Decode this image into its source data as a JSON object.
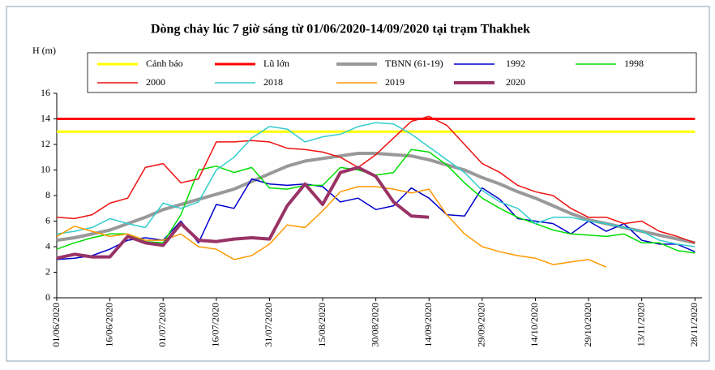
{
  "chart_data": {
    "type": "line",
    "title": "Dòng chảy lúc 7 giờ sáng từ 01/06/2020-14/09/2020 tại trạm Thakhek",
    "y_label": "H (m)",
    "x": [
      "01/06/2020",
      "06/06/2020",
      "11/06/2020",
      "16/06/2020",
      "21/06/2020",
      "26/06/2020",
      "01/07/2020",
      "06/07/2020",
      "11/07/2020",
      "16/07/2020",
      "21/07/2020",
      "26/07/2020",
      "31/07/2020",
      "05/08/2020",
      "10/08/2020",
      "15/08/2020",
      "20/08/2020",
      "25/08/2020",
      "30/08/2020",
      "04/09/2020",
      "09/09/2020",
      "14/09/2020",
      "19/09/2020",
      "24/09/2020",
      "29/09/2020",
      "04/10/2020",
      "09/10/2020",
      "14/10/2020",
      "19/10/2020",
      "24/10/2020",
      "29/10/2020",
      "03/11/2020",
      "08/11/2020",
      "13/11/2020",
      "18/11/2020",
      "23/11/2020",
      "28/11/2020"
    ],
    "xlim": [
      "01/06/2020",
      "30/11/2020"
    ],
    "xticks": [
      "01/06/2020",
      "16/06/2020",
      "01/07/2020",
      "16/07/2020",
      "31/07/2020",
      "15/08/2020",
      "30/08/2020",
      "14/09/2020",
      "29/09/2020",
      "14/10/2020",
      "29/10/2020",
      "13/11/2020",
      "28/11/2020"
    ],
    "ylim": [
      0,
      16
    ],
    "yticks": [
      0,
      2,
      4,
      6,
      8,
      10,
      12,
      14,
      16
    ],
    "series": [
      {
        "name": "Cảnh báo",
        "color": "#ffff00",
        "values": [
          13,
          13,
          13,
          13,
          13,
          13,
          13,
          13,
          13,
          13,
          13,
          13,
          13,
          13,
          13,
          13,
          13,
          13,
          13,
          13,
          13,
          13,
          13,
          13,
          13,
          13,
          13,
          13,
          13,
          13,
          13,
          13,
          13,
          13,
          13,
          13,
          13
        ]
      },
      {
        "name": "Lũ lớn",
        "color": "#ff0000",
        "values": [
          14,
          14,
          14,
          14,
          14,
          14,
          14,
          14,
          14,
          14,
          14,
          14,
          14,
          14,
          14,
          14,
          14,
          14,
          14,
          14,
          14,
          14,
          14,
          14,
          14,
          14,
          14,
          14,
          14,
          14,
          14,
          14,
          14,
          14,
          14,
          14,
          14
        ]
      },
      {
        "name": "TBNN (61-19)",
        "color": "#999999",
        "values": [
          4.5,
          4.7,
          5.0,
          5.3,
          5.8,
          6.3,
          6.9,
          7.3,
          7.7,
          8.1,
          8.5,
          9.1,
          9.7,
          10.3,
          10.7,
          10.9,
          11.1,
          11.3,
          11.3,
          11.2,
          11.1,
          10.8,
          10.4,
          10.0,
          9.4,
          8.9,
          8.3,
          7.8,
          7.2,
          6.6,
          6.1,
          5.8,
          5.5,
          5.2,
          4.9,
          4.6,
          4.3
        ]
      },
      {
        "name": "1992",
        "color": "#0000cc",
        "values": [
          3.0,
          3.1,
          3.3,
          3.8,
          4.5,
          4.7,
          4.5,
          6.0,
          4.3,
          7.3,
          7.0,
          9.3,
          8.9,
          8.8,
          8.9,
          8.7,
          7.5,
          7.8,
          6.9,
          7.2,
          8.6,
          7.8,
          6.5,
          6.4,
          8.6,
          7.7,
          6.2,
          6.0,
          5.8,
          5.0,
          6.0,
          5.2,
          5.8,
          4.5,
          4.2,
          4.2,
          3.6
        ]
      },
      {
        "name": "1998",
        "color": "#00dd00",
        "values": [
          3.8,
          4.3,
          4.7,
          5.0,
          5.0,
          4.4,
          4.3,
          6.5,
          10.0,
          10.3,
          9.8,
          10.2,
          8.6,
          8.5,
          8.8,
          8.8,
          10.2,
          10.0,
          9.6,
          9.8,
          11.6,
          11.4,
          10.4,
          9.0,
          7.8,
          7.0,
          6.3,
          5.8,
          5.3,
          5.0,
          4.9,
          4.8,
          5.0,
          4.3,
          4.3,
          3.7,
          3.5
        ]
      },
      {
        "name": "2000",
        "color": "#ee1111",
        "values": [
          6.3,
          6.2,
          6.5,
          7.4,
          7.8,
          10.2,
          10.5,
          9.0,
          9.3,
          12.2,
          12.2,
          12.3,
          12.2,
          11.7,
          11.6,
          11.4,
          11.0,
          10.2,
          11.2,
          12.5,
          13.8,
          14.2,
          13.5,
          12.0,
          10.5,
          9.8,
          8.8,
          8.3,
          8.0,
          7.0,
          6.3,
          6.3,
          5.8,
          6.0,
          5.2,
          4.8,
          4.3
        ]
      },
      {
        "name": "2018",
        "color": "#33cccc",
        "values": [
          5.0,
          5.2,
          5.5,
          6.2,
          5.8,
          5.5,
          7.4,
          7.0,
          7.5,
          10.0,
          11.0,
          12.5,
          13.4,
          13.2,
          12.2,
          12.6,
          12.8,
          13.4,
          13.7,
          13.6,
          12.8,
          11.8,
          10.8,
          9.8,
          8.4,
          7.5,
          7.0,
          5.8,
          6.3,
          6.3,
          6.0,
          5.8,
          5.5,
          5.2,
          4.5,
          4.2,
          4.0
        ]
      },
      {
        "name": "2019",
        "color": "#ff9900",
        "values": [
          4.8,
          5.6,
          5.2,
          4.8,
          5.0,
          4.5,
          4.5,
          5.0,
          4.0,
          3.8,
          3.0,
          3.3,
          4.2,
          5.7,
          5.5,
          6.8,
          8.3,
          8.7,
          8.7,
          8.5,
          8.2,
          8.5,
          6.5,
          5.0,
          4.0,
          3.6,
          3.3,
          3.1,
          2.6,
          2.8,
          3.0,
          2.4,
          null,
          null,
          null,
          null,
          null
        ]
      },
      {
        "name": "2020",
        "color": "#993366",
        "values": [
          3.1,
          3.4,
          3.2,
          3.2,
          4.8,
          4.3,
          4.1,
          5.8,
          4.5,
          4.4,
          4.6,
          4.7,
          4.6,
          7.2,
          8.9,
          7.3,
          9.8,
          10.2,
          9.5,
          7.5,
          6.4,
          6.3,
          null,
          null,
          null,
          null,
          null,
          null,
          null,
          null,
          null,
          null,
          null,
          null,
          null,
          null,
          null
        ]
      }
    ]
  }
}
